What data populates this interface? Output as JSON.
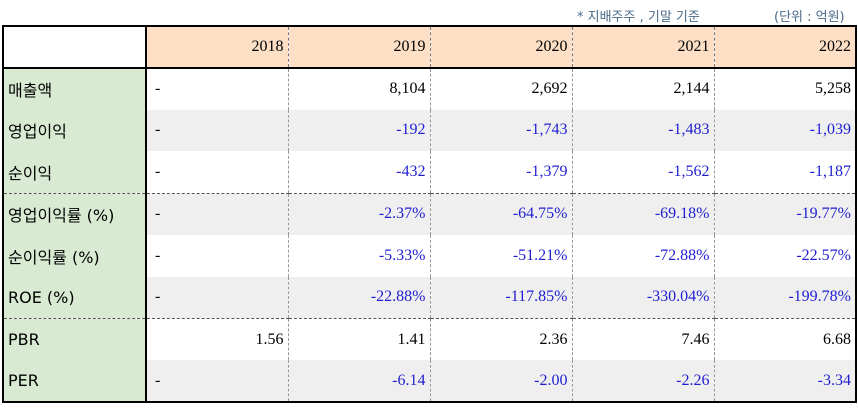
{
  "notes": {
    "basis": "* 지배주주 , 기말 기준",
    "unit": "(단위 : 억원)"
  },
  "table": {
    "years": [
      "2018",
      "2019",
      "2020",
      "2021",
      "2022"
    ],
    "rows": [
      {
        "label": "매출액",
        "values": [
          "-",
          "8,104",
          "2,692",
          "2,144",
          "5,258"
        ]
      },
      {
        "label": "영업이익",
        "values": [
          "-",
          "-192",
          "-1,743",
          "-1,483",
          "-1,039"
        ]
      },
      {
        "label": "순이익",
        "values": [
          "-",
          "-432",
          "-1,379",
          "-1,562",
          "-1,187"
        ]
      },
      {
        "label": "영업이익률 (%)",
        "values": [
          "-",
          "-2.37%",
          "-64.75%",
          "-69.18%",
          "-19.77%"
        ]
      },
      {
        "label": "순이익률 (%)",
        "values": [
          "-",
          "-5.33%",
          "-51.21%",
          "-72.88%",
          "-22.57%"
        ]
      },
      {
        "label": "ROE (%)",
        "values": [
          "-",
          "-22.88%",
          "-117.85%",
          "-330.04%",
          "-199.78%"
        ]
      },
      {
        "label": "PBR",
        "values": [
          "1.56",
          "1.41",
          "2.36",
          "7.46",
          "6.68"
        ]
      },
      {
        "label": "PER",
        "values": [
          "-",
          "-6.14",
          "-2.00",
          "-2.26",
          "-3.34"
        ]
      }
    ]
  }
}
